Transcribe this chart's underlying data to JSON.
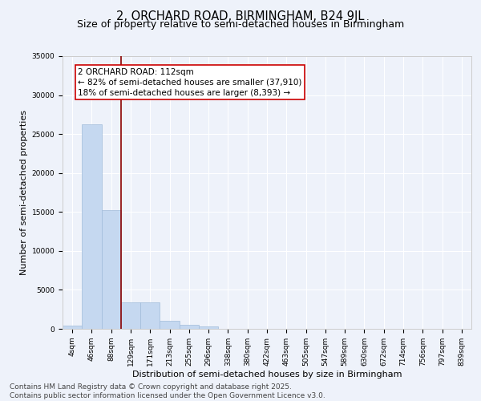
{
  "title_line1": "2, ORCHARD ROAD, BIRMINGHAM, B24 9JL",
  "title_line2": "Size of property relative to semi-detached houses in Birmingham",
  "xlabel": "Distribution of semi-detached houses by size in Birmingham",
  "ylabel": "Number of semi-detached properties",
  "categories": [
    "4sqm",
    "46sqm",
    "88sqm",
    "129sqm",
    "171sqm",
    "213sqm",
    "255sqm",
    "296sqm",
    "338sqm",
    "380sqm",
    "422sqm",
    "463sqm",
    "505sqm",
    "547sqm",
    "589sqm",
    "630sqm",
    "672sqm",
    "714sqm",
    "756sqm",
    "797sqm",
    "839sqm"
  ],
  "values": [
    400,
    26200,
    15200,
    3350,
    3350,
    1050,
    500,
    300,
    0,
    0,
    0,
    0,
    0,
    0,
    0,
    0,
    0,
    0,
    0,
    0,
    0
  ],
  "bar_color": "#c5d8f0",
  "bar_edge_color": "#a0bbda",
  "vline_color": "#8b0000",
  "annotation_title": "2 ORCHARD ROAD: 112sqm",
  "annotation_line1": "← 82% of semi-detached houses are smaller (37,910)",
  "annotation_line2": "18% of semi-detached houses are larger (8,393) →",
  "annotation_box_color": "#ffffff",
  "annotation_box_edge": "#cc0000",
  "ylim": [
    0,
    35000
  ],
  "yticks": [
    0,
    5000,
    10000,
    15000,
    20000,
    25000,
    30000,
    35000
  ],
  "background_color": "#eef2fa",
  "plot_bg_color": "#eef2fa",
  "footer_line1": "Contains HM Land Registry data © Crown copyright and database right 2025.",
  "footer_line2": "Contains public sector information licensed under the Open Government Licence v3.0.",
  "title_fontsize": 10.5,
  "subtitle_fontsize": 9,
  "axis_label_fontsize": 8,
  "tick_fontsize": 6.5,
  "annotation_fontsize": 7.5,
  "footer_fontsize": 6.5
}
